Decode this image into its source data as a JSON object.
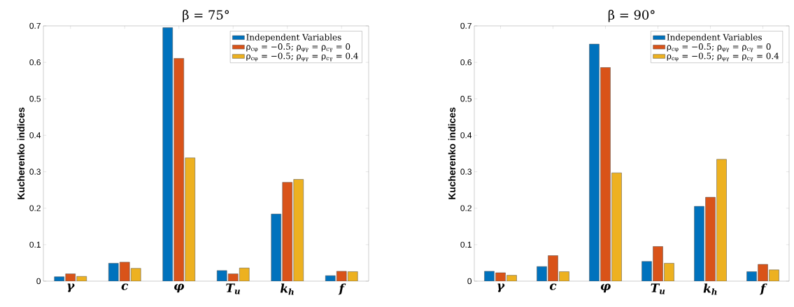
{
  "chart_data": [
    {
      "type": "bar",
      "title": "β = 75°",
      "ylabel": "Kucherenko indices",
      "categories": [
        "γ",
        "c",
        "φ",
        "T$_{u}$",
        "k$_{h}$",
        "f"
      ],
      "ylim": [
        0,
        0.7
      ],
      "yticks": [
        0,
        0.1,
        0.2,
        0.3,
        0.4,
        0.5,
        0.6,
        0.7
      ],
      "legend": "top right",
      "series": [
        {
          "name": "Independent Variables",
          "color": "#0072bd",
          "values": [
            0.012,
            0.049,
            0.695,
            0.029,
            0.184,
            0.015
          ]
        },
        {
          "name": "ρ$_{cφ}$ = −0.5; ρ$_{φγ}$ = ρ$_{cγ}$ = 0",
          "color": "#d95319",
          "values": [
            0.02,
            0.052,
            0.611,
            0.02,
            0.271,
            0.027
          ]
        },
        {
          "name": "ρ$_{cφ}$ = −0.5; ρ$_{φγ}$ = ρ$_{cγ}$ = 0.4",
          "color": "#edb120",
          "values": [
            0.013,
            0.035,
            0.338,
            0.036,
            0.279,
            0.026
          ]
        }
      ]
    },
    {
      "type": "bar",
      "title": "β = 90°",
      "ylabel": "Kucherenko indices",
      "categories": [
        "γ",
        "c",
        "φ",
        "T$_{u}$",
        "k$_{h}$",
        "f"
      ],
      "ylim": [
        0,
        0.7
      ],
      "yticks": [
        0,
        0.1,
        0.2,
        0.3,
        0.4,
        0.5,
        0.6,
        0.7
      ],
      "legend": "top right",
      "series": [
        {
          "name": "Independent Variables",
          "color": "#0072bd",
          "values": [
            0.027,
            0.04,
            0.65,
            0.054,
            0.205,
            0.026
          ]
        },
        {
          "name": "ρ$_{cφ}$ = −0.5; ρ$_{φγ}$ = ρ$_{cγ}$ = 0",
          "color": "#d95319",
          "values": [
            0.023,
            0.07,
            0.586,
            0.095,
            0.23,
            0.046
          ]
        },
        {
          "name": "ρ$_{cφ}$ = −0.5; ρ$_{φγ}$ = ρ$_{cγ}$ = 0.4",
          "color": "#edb120",
          "values": [
            0.016,
            0.026,
            0.297,
            0.049,
            0.334,
            0.031
          ]
        }
      ]
    }
  ]
}
